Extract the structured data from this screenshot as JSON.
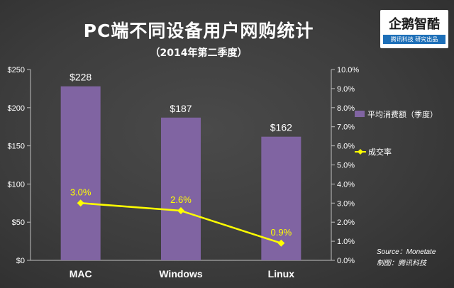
{
  "logo": {
    "main": "企鹅智酷",
    "sub": "腾讯科技 研究出品"
  },
  "source": "Source：Monetate",
  "credit": "制图：腾讯科技",
  "chart_data": {
    "type": "bar",
    "title": "PC端不同设备用户网购统计",
    "subtitle": "（2014年第二季度）",
    "categories": [
      "MAC",
      "Windows",
      "Linux"
    ],
    "series": [
      {
        "name": "平均消费额（季度）",
        "type": "bar",
        "axis": "left",
        "values": [
          228,
          187,
          162
        ],
        "labels": [
          "$228",
          "$187",
          "$162"
        ],
        "color": "#8064a2"
      },
      {
        "name": "成交率",
        "type": "line",
        "axis": "right",
        "values": [
          3.0,
          2.6,
          0.9
        ],
        "labels": [
          "3.0%",
          "2.6%",
          "0.9%"
        ],
        "color": "#ffff00"
      }
    ],
    "y_left": {
      "min": 0,
      "max": 250,
      "ticks": [
        0,
        50,
        100,
        150,
        200,
        250
      ],
      "tick_labels": [
        "$0",
        "$50",
        "$100",
        "$150",
        "$200",
        "$250"
      ]
    },
    "y_right": {
      "min": 0,
      "max": 10,
      "ticks": [
        0,
        1,
        2,
        3,
        4,
        5,
        6,
        7,
        8,
        9,
        10
      ],
      "tick_labels": [
        "0.0%",
        "1.0%",
        "2.0%",
        "3.0%",
        "4.0%",
        "5.0%",
        "6.0%",
        "7.0%",
        "8.0%",
        "9.0%",
        "10.0%"
      ]
    },
    "grid": false,
    "legend_position": "right"
  }
}
